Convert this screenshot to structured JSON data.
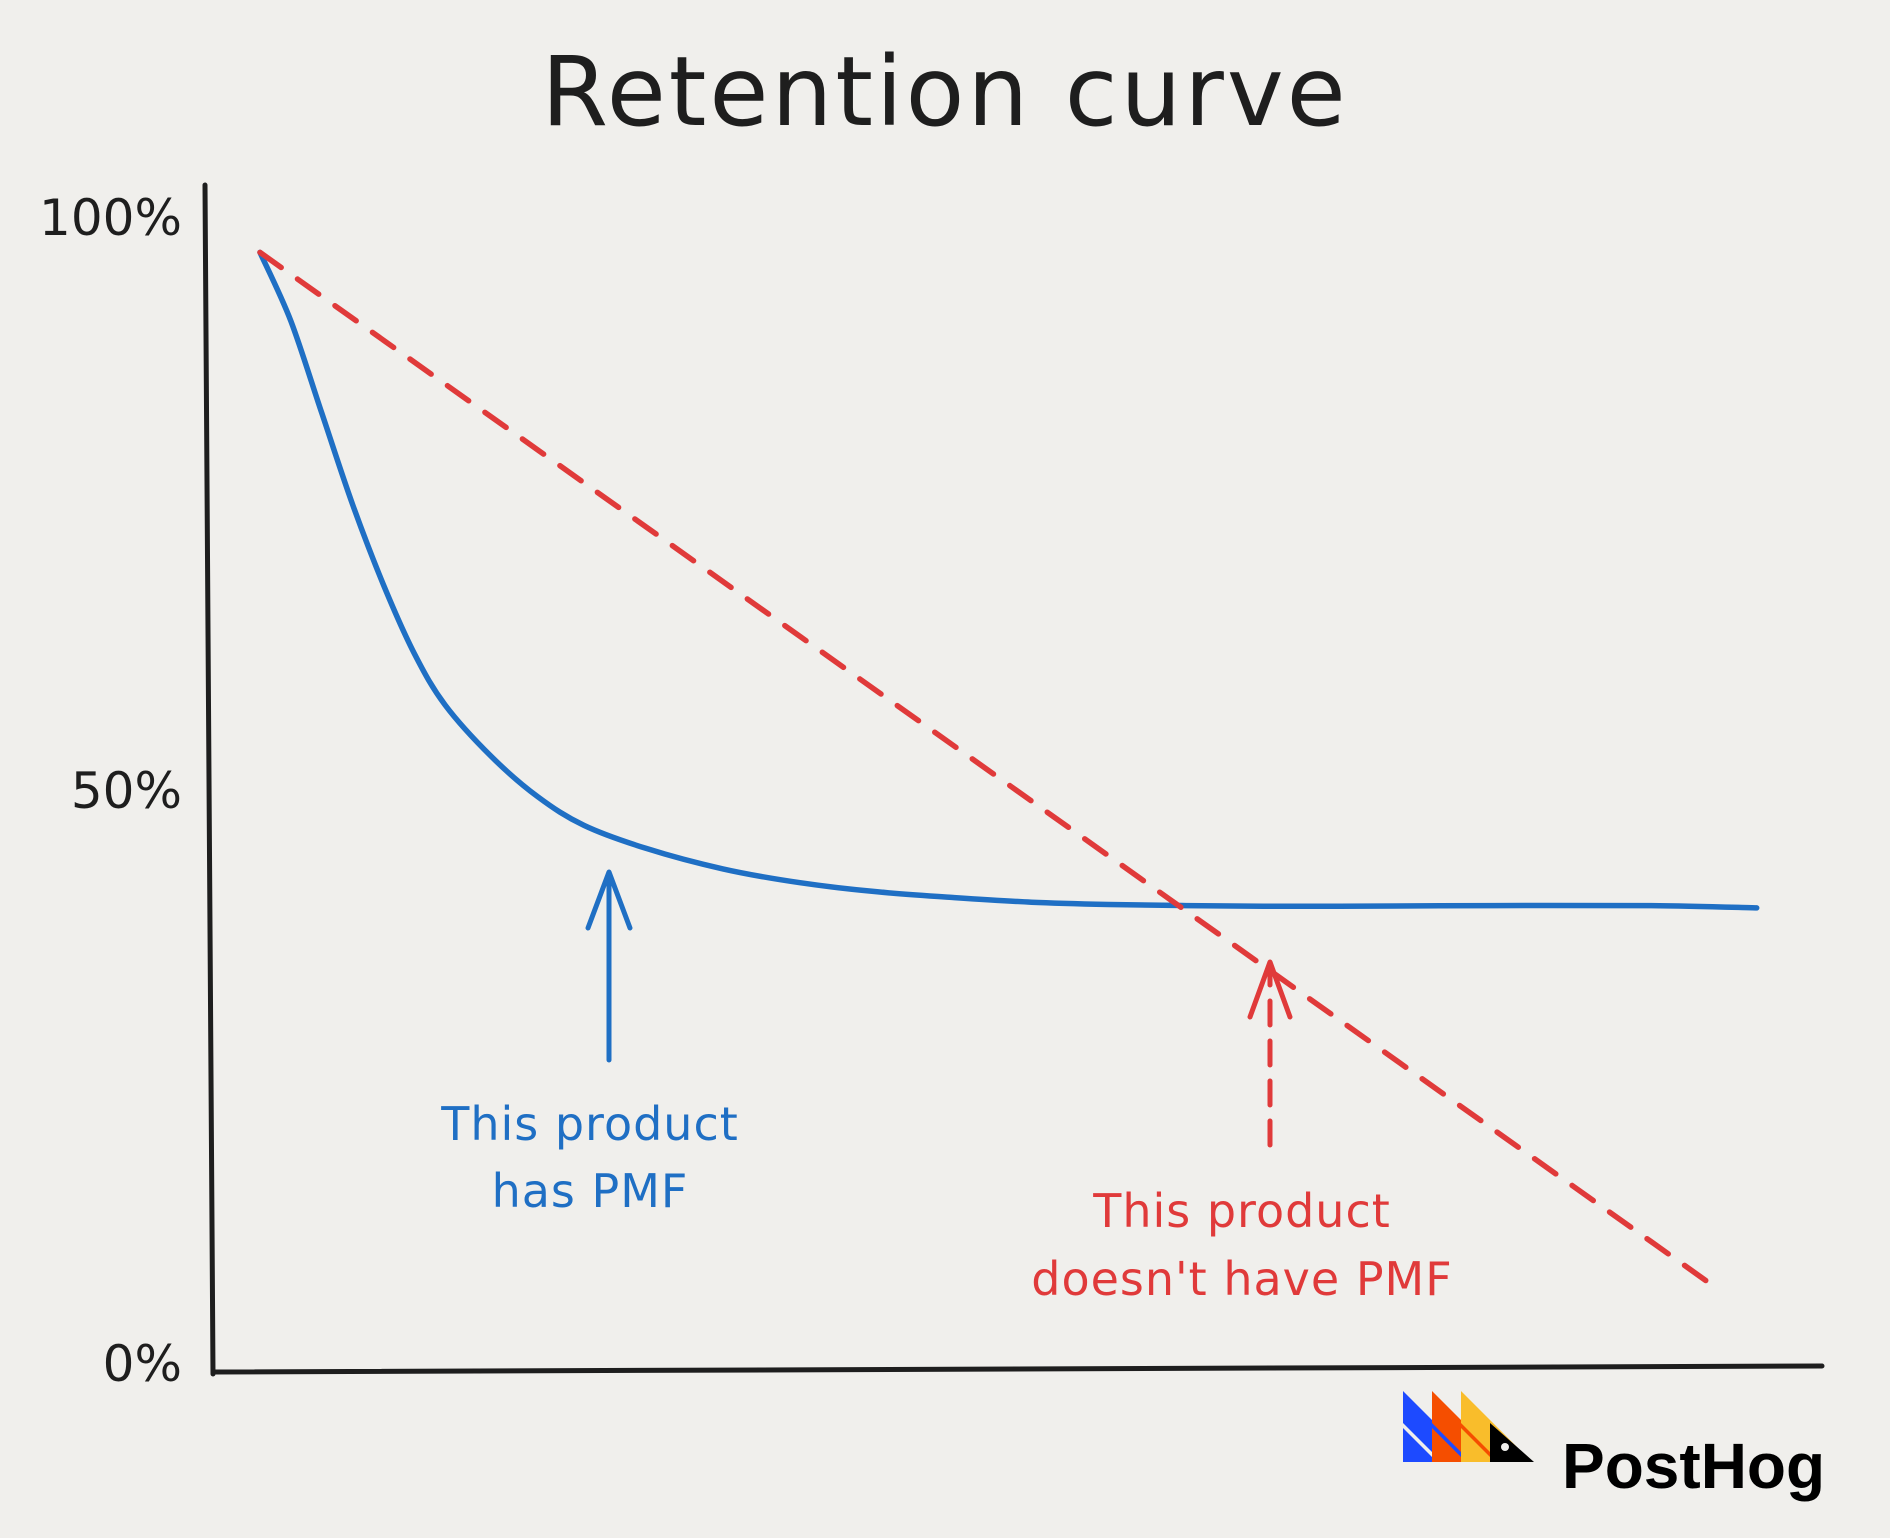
{
  "chart_data": {
    "type": "line",
    "title": "Retention curve",
    "xlabel": "",
    "ylabel": "",
    "ylim": [
      0,
      100
    ],
    "y_ticks": [
      "100%",
      "50%",
      "0%"
    ],
    "y_tick_values": [
      100,
      50,
      0
    ],
    "xlim": [
      0,
      100
    ],
    "series": [
      {
        "style": "solid",
        "color": "#1f6fc4",
        "x": [
          0,
          2,
          4,
          6,
          8,
          10,
          12,
          15,
          18,
          21,
          25,
          30,
          35,
          40,
          45,
          50,
          55,
          60,
          65,
          70,
          80,
          90,
          97
        ],
        "y": [
          97,
          91,
          83,
          75,
          68,
          62,
          57.5,
          53,
          49.5,
          47,
          45,
          43.2,
          42,
          41.2,
          40.7,
          40.3,
          40.1,
          40,
          39.95,
          39.95,
          40,
          40,
          39.8
        ]
      },
      {
        "style": "dashed",
        "color": "#e03a3a",
        "x": [
          0,
          94
        ],
        "y": [
          97,
          7
        ]
      }
    ],
    "annotations": [
      {
        "id": "blue",
        "lines": [
          "This product",
          "has PMF"
        ],
        "color": "#1f6fc4",
        "arrow": "solid"
      },
      {
        "id": "red",
        "lines": [
          "This product",
          "doesn't have PMF"
        ],
        "color": "#e03a3a",
        "arrow": "dashed"
      }
    ]
  },
  "brand": {
    "name": "PostHog",
    "logo_colors": [
      "#1d4aff",
      "#f54e00",
      "#f9bd2b",
      "#000000"
    ]
  }
}
